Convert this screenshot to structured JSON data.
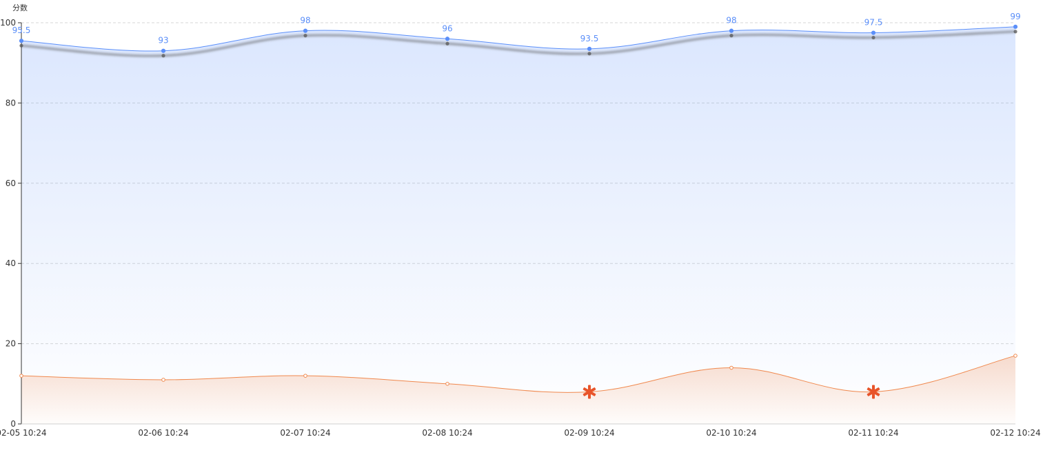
{
  "chart_data": {
    "type": "line",
    "ylabel": "分数",
    "ylim": [
      0,
      100
    ],
    "yticks": [
      0,
      20,
      40,
      60,
      80,
      100
    ],
    "grid": true,
    "categories": [
      "02-05 10:24",
      "02-06 10:24",
      "02-07 10:24",
      "02-08 10:24",
      "02-09 10:24",
      "02-10 10:24",
      "02-11 10:24",
      "02-12 10:24"
    ],
    "series": [
      {
        "color": "#5b8ff9",
        "values": [
          95.5,
          93,
          98,
          96,
          93.5,
          98,
          97.5,
          99
        ],
        "labels": [
          "95.5",
          "93",
          "98",
          "96",
          "93.5",
          "98",
          "97.5",
          "99"
        ],
        "area": true,
        "smooth": true
      },
      {
        "color": "#f0884d",
        "values": [
          12,
          11,
          12,
          10,
          8,
          14,
          8,
          17
        ],
        "area": true,
        "smooth": true,
        "markers": [
          {
            "index": 4,
            "symbol": "asterisk",
            "color": "#e8542a"
          },
          {
            "index": 6,
            "symbol": "asterisk",
            "color": "#e8542a"
          }
        ]
      }
    ]
  }
}
